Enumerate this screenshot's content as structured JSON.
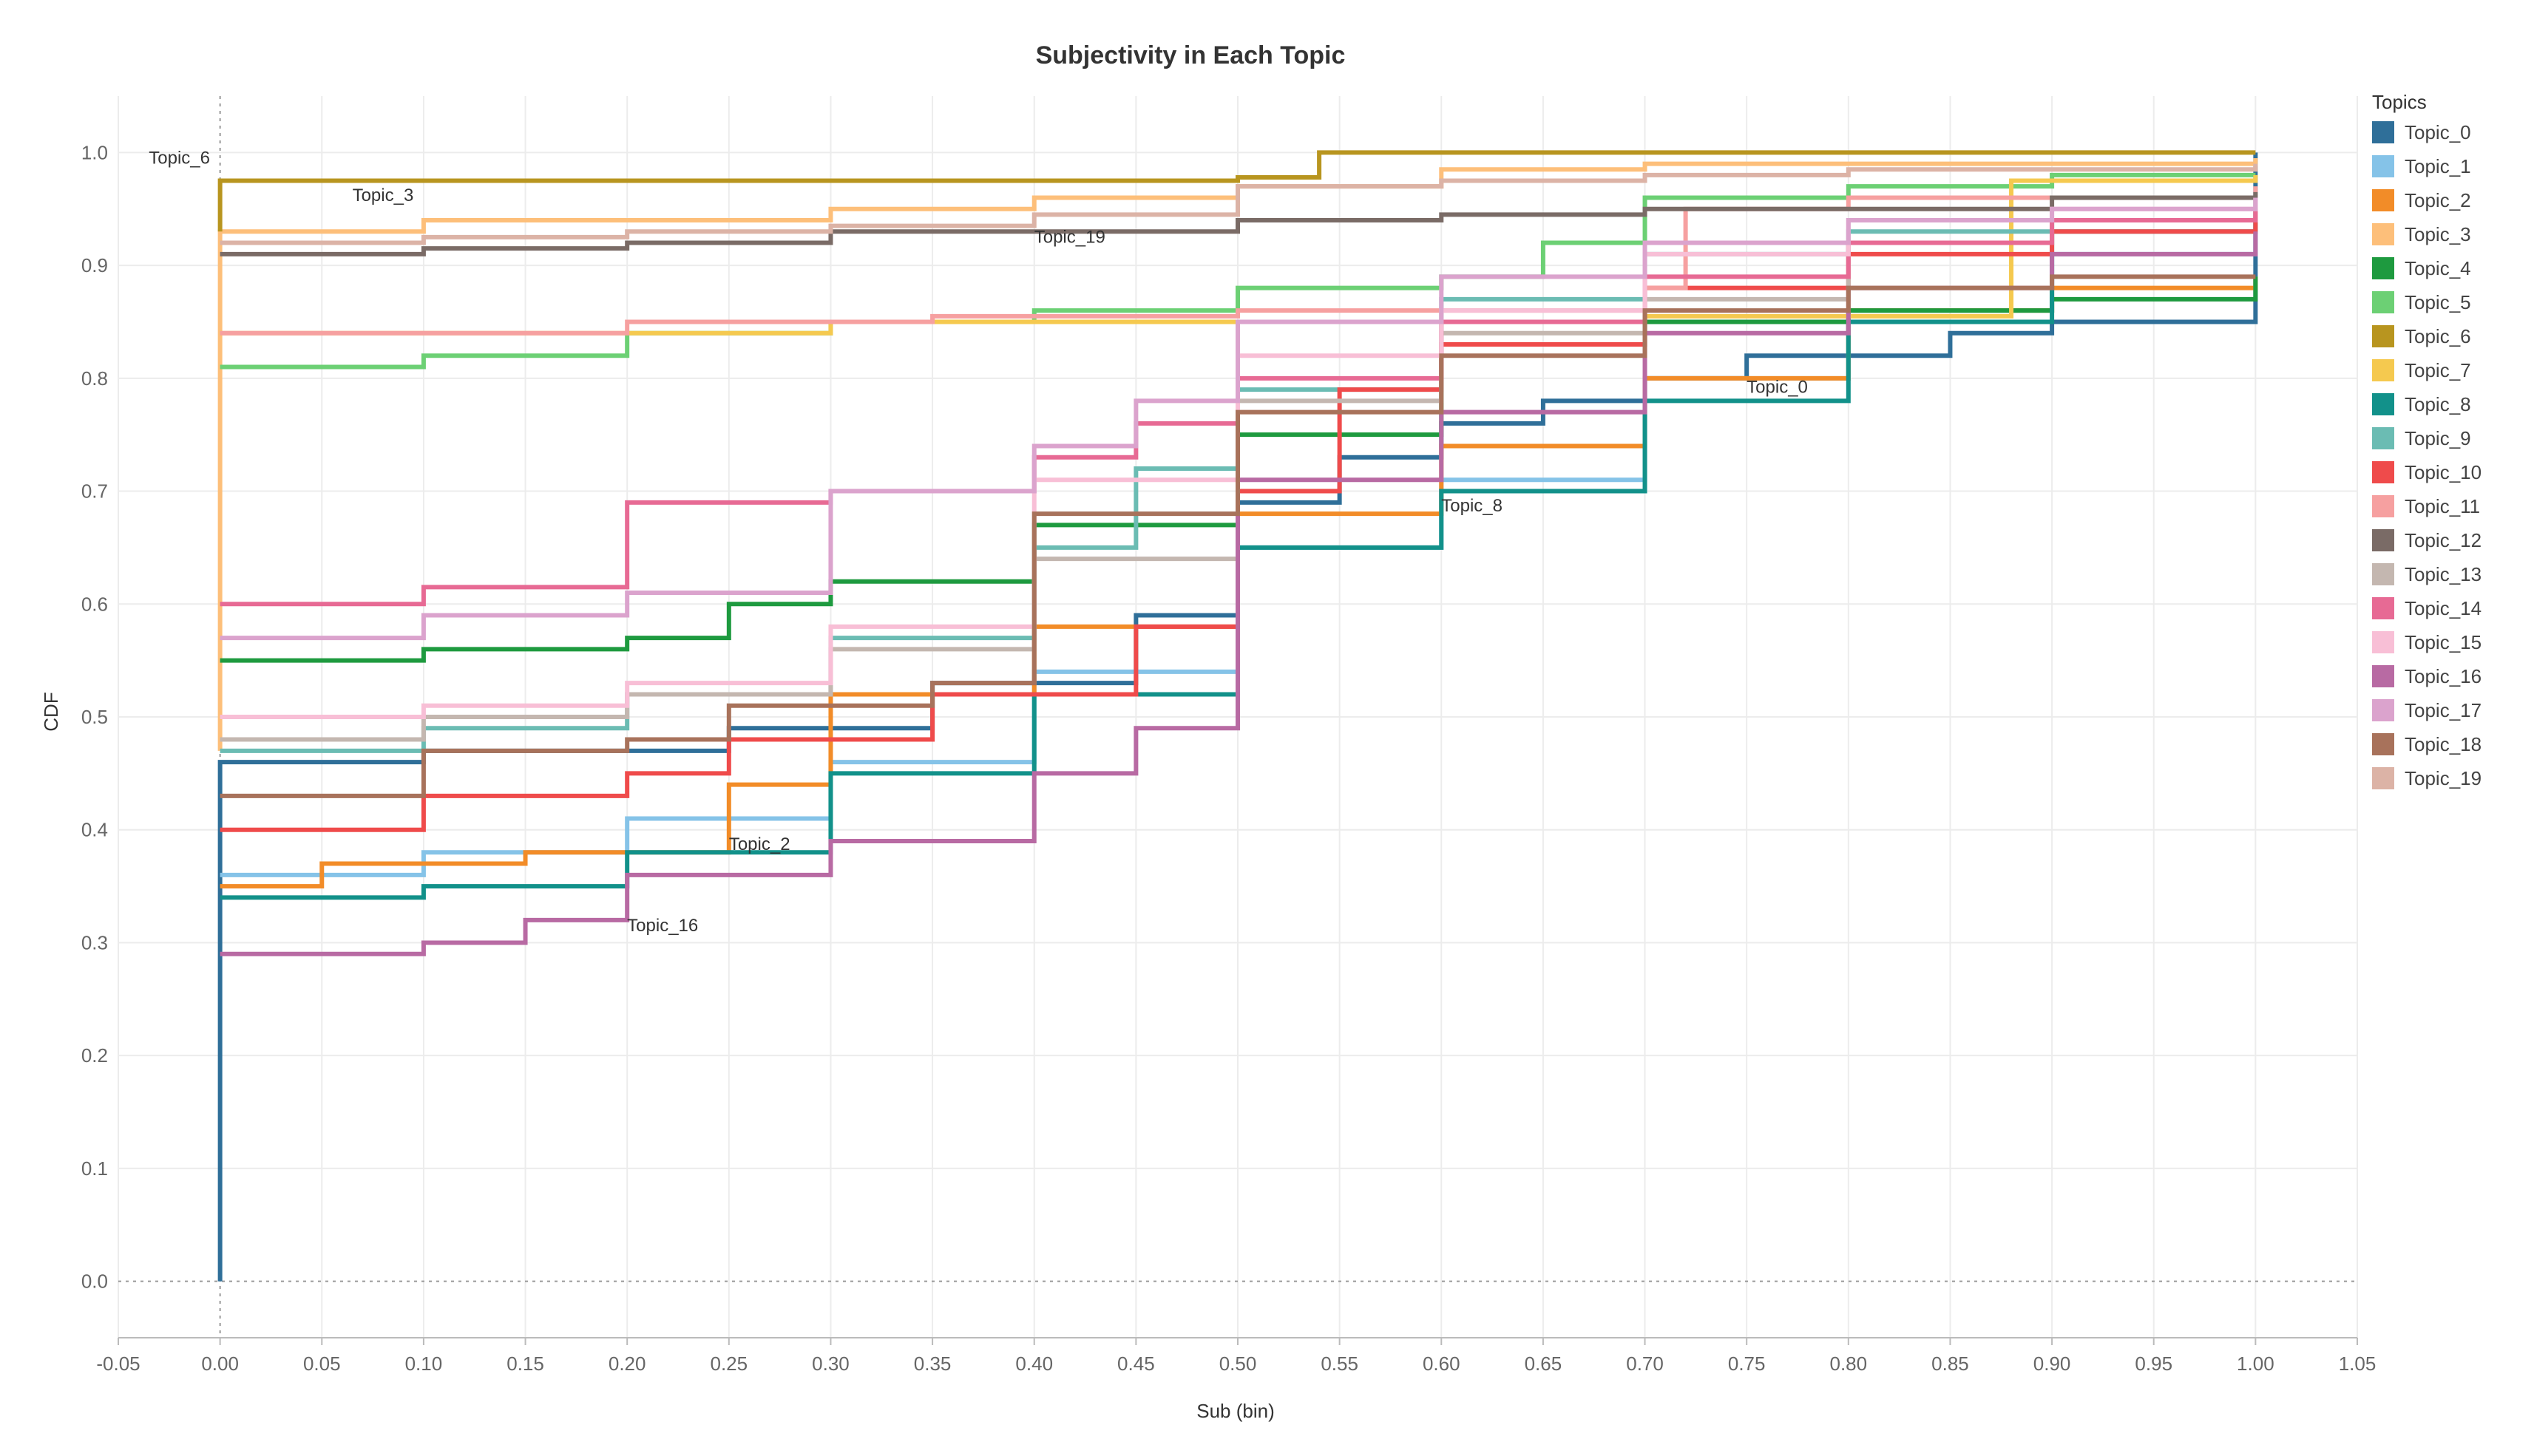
{
  "chart_data": {
    "type": "line",
    "title": "Subjectivity in Each Topic",
    "xlabel": "Sub (bin)",
    "ylabel": "CDF",
    "xlim": [
      -0.05,
      1.05
    ],
    "ylim": [
      -0.05,
      1.05
    ],
    "x_ticks": [
      "-0.05",
      "0.00",
      "0.05",
      "0.10",
      "0.15",
      "0.20",
      "0.25",
      "0.30",
      "0.35",
      "0.40",
      "0.45",
      "0.50",
      "0.55",
      "0.60",
      "0.65",
      "0.70",
      "0.75",
      "0.80",
      "0.85",
      "0.90",
      "0.95",
      "1.00",
      "1.05"
    ],
    "y_ticks": [
      "0.0",
      "0.1",
      "0.2",
      "0.3",
      "0.4",
      "0.5",
      "0.6",
      "0.7",
      "0.8",
      "0.9",
      "1.0"
    ],
    "grid": true,
    "legend_title": "Topics",
    "legend_position": "right",
    "series": [
      {
        "name": "Topic_0",
        "color": "#2f6f99",
        "points": [
          [
            0,
            0
          ],
          [
            0,
            0.46
          ],
          [
            0.1,
            0.47
          ],
          [
            0.25,
            0.49
          ],
          [
            0.35,
            0.53
          ],
          [
            0.45,
            0.59
          ],
          [
            0.5,
            0.69
          ],
          [
            0.55,
            0.73
          ],
          [
            0.6,
            0.76
          ],
          [
            0.65,
            0.78
          ],
          [
            0.7,
            0.8
          ],
          [
            0.75,
            0.82
          ],
          [
            0.85,
            0.84
          ],
          [
            0.9,
            0.85
          ],
          [
            1.0,
            0.86
          ],
          [
            1.0,
            1.0
          ]
        ]
      },
      {
        "name": "Topic_1",
        "color": "#85c3e8",
        "points": [
          [
            0,
            0.36
          ],
          [
            0.1,
            0.38
          ],
          [
            0.2,
            0.41
          ],
          [
            0.3,
            0.46
          ],
          [
            0.4,
            0.54
          ],
          [
            0.5,
            0.6
          ],
          [
            0.5,
            0.65
          ],
          [
            0.6,
            0.71
          ],
          [
            0.7,
            0.8
          ],
          [
            0.8,
            0.86
          ],
          [
            0.9,
            0.91
          ],
          [
            1.0,
            0.94
          ]
        ]
      },
      {
        "name": "Topic_2",
        "color": "#f28c28",
        "points": [
          [
            0,
            0.35
          ],
          [
            0.05,
            0.37
          ],
          [
            0.15,
            0.38
          ],
          [
            0.25,
            0.44
          ],
          [
            0.3,
            0.52
          ],
          [
            0.4,
            0.58
          ],
          [
            0.5,
            0.64
          ],
          [
            0.5,
            0.68
          ],
          [
            0.6,
            0.74
          ],
          [
            0.7,
            0.8
          ],
          [
            0.8,
            0.86
          ],
          [
            0.9,
            0.88
          ],
          [
            1.0,
            0.89
          ]
        ]
      },
      {
        "name": "Topic_3",
        "color": "#fdbf7a",
        "points": [
          [
            0,
            0.47
          ],
          [
            0,
            0.93
          ],
          [
            0.1,
            0.94
          ],
          [
            0.3,
            0.95
          ],
          [
            0.4,
            0.96
          ],
          [
            0.5,
            0.97
          ],
          [
            0.6,
            0.985
          ],
          [
            0.7,
            0.99
          ],
          [
            1.0,
            0.995
          ]
        ]
      },
      {
        "name": "Topic_4",
        "color": "#1e9a3f",
        "points": [
          [
            0,
            0.55
          ],
          [
            0.1,
            0.56
          ],
          [
            0.2,
            0.57
          ],
          [
            0.25,
            0.6
          ],
          [
            0.3,
            0.62
          ],
          [
            0.4,
            0.67
          ],
          [
            0.5,
            0.69
          ],
          [
            0.5,
            0.75
          ],
          [
            0.6,
            0.83
          ],
          [
            0.7,
            0.85
          ],
          [
            0.8,
            0.86
          ],
          [
            0.9,
            0.87
          ],
          [
            1.0,
            0.89
          ]
        ]
      },
      {
        "name": "Topic_5",
        "color": "#6cd074",
        "points": [
          [
            0,
            0.81
          ],
          [
            0.1,
            0.82
          ],
          [
            0.2,
            0.84
          ],
          [
            0.3,
            0.85
          ],
          [
            0.4,
            0.86
          ],
          [
            0.5,
            0.88
          ],
          [
            0.6,
            0.89
          ],
          [
            0.65,
            0.92
          ],
          [
            0.7,
            0.96
          ],
          [
            0.8,
            0.97
          ],
          [
            0.9,
            0.98
          ],
          [
            1.0,
            0.98
          ]
        ]
      },
      {
        "name": "Topic_6",
        "color": "#b8951f",
        "points": [
          [
            0,
            0.93
          ],
          [
            0,
            0.975
          ],
          [
            0.5,
            0.978
          ],
          [
            0.54,
            0.99
          ],
          [
            0.54,
            1.0
          ],
          [
            1.0,
            1.0
          ]
        ]
      },
      {
        "name": "Topic_7",
        "color": "#f5c94f",
        "points": [
          [
            0,
            0.84
          ],
          [
            0.2,
            0.84
          ],
          [
            0.3,
            0.85
          ],
          [
            0.5,
            0.85
          ],
          [
            0.7,
            0.855
          ],
          [
            0.88,
            0.86
          ],
          [
            0.88,
            0.975
          ],
          [
            1.0,
            0.98
          ]
        ]
      },
      {
        "name": "Topic_8",
        "color": "#12918a",
        "points": [
          [
            0,
            0.34
          ],
          [
            0.1,
            0.35
          ],
          [
            0.2,
            0.38
          ],
          [
            0.3,
            0.45
          ],
          [
            0.4,
            0.52
          ],
          [
            0.5,
            0.59
          ],
          [
            0.5,
            0.65
          ],
          [
            0.6,
            0.7
          ],
          [
            0.7,
            0.78
          ],
          [
            0.8,
            0.85
          ],
          [
            0.9,
            0.87
          ],
          [
            0.9,
            0.93
          ],
          [
            1.0,
            0.94
          ]
        ]
      },
      {
        "name": "Topic_9",
        "color": "#6bbcb3",
        "points": [
          [
            0,
            0.47
          ],
          [
            0.1,
            0.49
          ],
          [
            0.2,
            0.52
          ],
          [
            0.3,
            0.57
          ],
          [
            0.4,
            0.65
          ],
          [
            0.45,
            0.72
          ],
          [
            0.5,
            0.79
          ],
          [
            0.6,
            0.87
          ],
          [
            0.7,
            0.91
          ],
          [
            0.8,
            0.93
          ],
          [
            0.9,
            0.94
          ],
          [
            1.0,
            0.95
          ]
        ]
      },
      {
        "name": "Topic_10",
        "color": "#ef4b4b",
        "points": [
          [
            0,
            0.4
          ],
          [
            0.1,
            0.43
          ],
          [
            0.2,
            0.45
          ],
          [
            0.25,
            0.48
          ],
          [
            0.35,
            0.52
          ],
          [
            0.45,
            0.58
          ],
          [
            0.5,
            0.7
          ],
          [
            0.55,
            0.79
          ],
          [
            0.6,
            0.83
          ],
          [
            0.7,
            0.88
          ],
          [
            0.8,
            0.91
          ],
          [
            0.9,
            0.93
          ],
          [
            1.0,
            0.95
          ]
        ]
      },
      {
        "name": "Topic_11",
        "color": "#f6a0a0",
        "points": [
          [
            0,
            0.84
          ],
          [
            0.1,
            0.84
          ],
          [
            0.2,
            0.85
          ],
          [
            0.35,
            0.855
          ],
          [
            0.5,
            0.86
          ],
          [
            0.6,
            0.86
          ],
          [
            0.7,
            0.88
          ],
          [
            0.72,
            0.95
          ],
          [
            0.8,
            0.96
          ],
          [
            1.0,
            0.97
          ]
        ]
      },
      {
        "name": "Topic_12",
        "color": "#7a6b66",
        "points": [
          [
            0,
            0.91
          ],
          [
            0.1,
            0.915
          ],
          [
            0.2,
            0.92
          ],
          [
            0.3,
            0.93
          ],
          [
            0.5,
            0.935
          ],
          [
            0.5,
            0.94
          ],
          [
            0.6,
            0.945
          ],
          [
            0.7,
            0.95
          ],
          [
            0.9,
            0.96
          ],
          [
            1.0,
            0.965
          ]
        ]
      },
      {
        "name": "Topic_13",
        "color": "#c4b7b0",
        "points": [
          [
            0,
            0.48
          ],
          [
            0.1,
            0.5
          ],
          [
            0.2,
            0.52
          ],
          [
            0.3,
            0.56
          ],
          [
            0.4,
            0.64
          ],
          [
            0.5,
            0.69
          ],
          [
            0.5,
            0.78
          ],
          [
            0.6,
            0.84
          ],
          [
            0.7,
            0.87
          ],
          [
            0.8,
            0.92
          ],
          [
            0.9,
            0.94
          ],
          [
            1.0,
            0.96
          ]
        ]
      },
      {
        "name": "Topic_14",
        "color": "#e76a94",
        "points": [
          [
            0,
            0.6
          ],
          [
            0.1,
            0.615
          ],
          [
            0.2,
            0.63
          ],
          [
            0.2,
            0.69
          ],
          [
            0.3,
            0.7
          ],
          [
            0.4,
            0.73
          ],
          [
            0.45,
            0.76
          ],
          [
            0.5,
            0.77
          ],
          [
            0.5,
            0.8
          ],
          [
            0.6,
            0.85
          ],
          [
            0.7,
            0.89
          ],
          [
            0.8,
            0.92
          ],
          [
            0.9,
            0.94
          ],
          [
            1.0,
            0.95
          ]
        ]
      },
      {
        "name": "Topic_15",
        "color": "#f8bfd6",
        "points": [
          [
            0,
            0.5
          ],
          [
            0.1,
            0.51
          ],
          [
            0.2,
            0.53
          ],
          [
            0.3,
            0.58
          ],
          [
            0.4,
            0.65
          ],
          [
            0.4,
            0.71
          ],
          [
            0.5,
            0.72
          ],
          [
            0.5,
            0.82
          ],
          [
            0.6,
            0.86
          ],
          [
            0.7,
            0.91
          ],
          [
            0.8,
            0.94
          ],
          [
            0.9,
            0.95
          ],
          [
            1.0,
            0.96
          ]
        ]
      },
      {
        "name": "Topic_16",
        "color": "#b86aa3",
        "points": [
          [
            0,
            0.29
          ],
          [
            0.1,
            0.3
          ],
          [
            0.15,
            0.32
          ],
          [
            0.2,
            0.33
          ],
          [
            0.2,
            0.36
          ],
          [
            0.3,
            0.39
          ],
          [
            0.4,
            0.45
          ],
          [
            0.45,
            0.49
          ],
          [
            0.5,
            0.56
          ],
          [
            0.5,
            0.71
          ],
          [
            0.6,
            0.77
          ],
          [
            0.7,
            0.84
          ],
          [
            0.8,
            0.88
          ],
          [
            0.9,
            0.91
          ],
          [
            1.0,
            0.93
          ]
        ]
      },
      {
        "name": "Topic_17",
        "color": "#dba3cd",
        "points": [
          [
            0,
            0.57
          ],
          [
            0.1,
            0.59
          ],
          [
            0.2,
            0.61
          ],
          [
            0.3,
            0.64
          ],
          [
            0.3,
            0.7
          ],
          [
            0.4,
            0.74
          ],
          [
            0.45,
            0.78
          ],
          [
            0.5,
            0.8
          ],
          [
            0.5,
            0.85
          ],
          [
            0.6,
            0.89
          ],
          [
            0.7,
            0.92
          ],
          [
            0.8,
            0.94
          ],
          [
            0.9,
            0.95
          ],
          [
            1.0,
            0.96
          ]
        ]
      },
      {
        "name": "Topic_18",
        "color": "#a8725b",
        "points": [
          [
            0,
            0.43
          ],
          [
            0.1,
            0.43
          ],
          [
            0.1,
            0.47
          ],
          [
            0.2,
            0.48
          ],
          [
            0.25,
            0.51
          ],
          [
            0.35,
            0.53
          ],
          [
            0.4,
            0.59
          ],
          [
            0.4,
            0.68
          ],
          [
            0.5,
            0.73
          ],
          [
            0.5,
            0.77
          ],
          [
            0.6,
            0.82
          ],
          [
            0.7,
            0.86
          ],
          [
            0.8,
            0.88
          ],
          [
            0.9,
            0.89
          ],
          [
            1.0,
            0.89
          ]
        ]
      },
      {
        "name": "Topic_19",
        "color": "#dcb3a6",
        "points": [
          [
            0,
            0.92
          ],
          [
            0.1,
            0.925
          ],
          [
            0.2,
            0.93
          ],
          [
            0.3,
            0.935
          ],
          [
            0.4,
            0.945
          ],
          [
            0.5,
            0.955
          ],
          [
            0.5,
            0.97
          ],
          [
            0.6,
            0.975
          ],
          [
            0.7,
            0.98
          ],
          [
            0.8,
            0.985
          ],
          [
            1.0,
            0.99
          ]
        ]
      }
    ],
    "annotations": [
      {
        "text": "Topic_6",
        "x": -0.035,
        "y": 0.99
      },
      {
        "text": "Topic_3",
        "x": 0.065,
        "y": 0.957
      },
      {
        "text": "Topic_19",
        "x": 0.4,
        "y": 0.92
      },
      {
        "text": "Topic_0",
        "x": 0.75,
        "y": 0.787
      },
      {
        "text": "Topic_8",
        "x": 0.6,
        "y": 0.682
      },
      {
        "text": "Topic_2",
        "x": 0.25,
        "y": 0.382
      },
      {
        "text": "Topic_16",
        "x": 0.2,
        "y": 0.31
      }
    ]
  }
}
